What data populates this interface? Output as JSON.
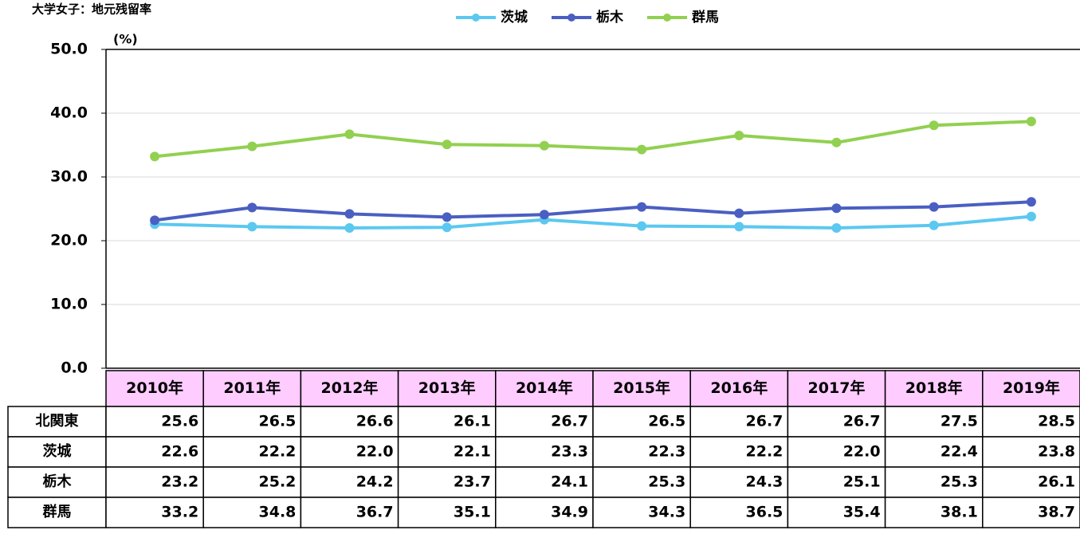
{
  "chart_data": {
    "type": "line",
    "title": "大学女子：地元残留率",
    "y_unit": "(%)",
    "categories": [
      "2010年",
      "2011年",
      "2012年",
      "2013年",
      "2014年",
      "2015年",
      "2016年",
      "2017年",
      "2018年",
      "2019年"
    ],
    "ylim": [
      0,
      50
    ],
    "yticks": [
      {
        "value": 0,
        "label": "0.0"
      },
      {
        "value": 10,
        "label": "10.0"
      },
      {
        "value": 20,
        "label": "20.0"
      },
      {
        "value": 30,
        "label": "30.0"
      },
      {
        "value": 40,
        "label": "40.0"
      },
      {
        "value": 50,
        "label": "50.0"
      }
    ],
    "grid": true,
    "legend": "top",
    "series": [
      {
        "name": "茨城",
        "color": "#5bc8f0",
        "values": [
          22.6,
          22.2,
          22.0,
          22.1,
          23.3,
          22.3,
          22.2,
          22.0,
          22.4,
          23.8
        ],
        "value_labels": [
          "22.6",
          "22.2",
          "22.0",
          "22.1",
          "23.3",
          "22.3",
          "22.2",
          "22.0",
          "22.4",
          "23.8"
        ]
      },
      {
        "name": "栃木",
        "color": "#4a5fc1",
        "values": [
          23.2,
          25.2,
          24.2,
          23.7,
          24.1,
          25.3,
          24.3,
          25.1,
          25.3,
          26.1
        ],
        "value_labels": [
          "23.2",
          "25.2",
          "24.2",
          "23.7",
          "24.1",
          "25.3",
          "24.3",
          "25.1",
          "25.3",
          "26.1"
        ]
      },
      {
        "name": "群馬",
        "color": "#92d050",
        "values": [
          33.2,
          34.8,
          36.7,
          35.1,
          34.9,
          34.3,
          36.5,
          35.4,
          38.1,
          38.7
        ],
        "value_labels": [
          "33.2",
          "34.8",
          "36.7",
          "35.1",
          "34.9",
          "34.3",
          "36.5",
          "35.4",
          "38.1",
          "38.7"
        ]
      }
    ]
  },
  "table": {
    "row_name": "北関東",
    "values": [
      25.6,
      26.5,
      26.6,
      26.1,
      26.7,
      26.5,
      26.7,
      26.7,
      27.5,
      28.5
    ],
    "value_labels": [
      "25.6",
      "26.5",
      "26.6",
      "26.1",
      "26.7",
      "26.5",
      "26.7",
      "26.7",
      "27.5",
      "28.5"
    ]
  }
}
